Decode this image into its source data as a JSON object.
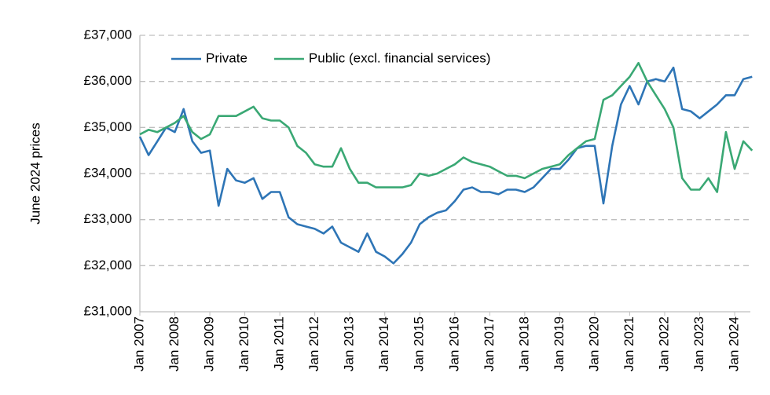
{
  "chart_data": {
    "type": "line",
    "y_label": "June  2024 prices",
    "categories": [
      "Jan 2007",
      null,
      null,
      null,
      "Jan 2008",
      null,
      null,
      null,
      "Jan 2009",
      null,
      null,
      null,
      "Jan 2010",
      null,
      null,
      null,
      "Jan 2011",
      null,
      null,
      null,
      "Jan 2012",
      null,
      null,
      null,
      "Jan 2013",
      null,
      null,
      null,
      "Jan 2014",
      null,
      null,
      null,
      "Jan 2015",
      null,
      null,
      null,
      "Jan 2016",
      null,
      null,
      null,
      "Jan 2017",
      null,
      null,
      null,
      "Jan 2018",
      null,
      null,
      null,
      "Jan 2019",
      null,
      null,
      null,
      "Jan 2020",
      null,
      null,
      null,
      "Jan 2021",
      null,
      null,
      null,
      "Jan 2022",
      null,
      null,
      null,
      "Jan 2023",
      null,
      null,
      null,
      "Jan 2024",
      null,
      null
    ],
    "series": [
      {
        "name": "Private",
        "color": "#2e75b6",
        "values": [
          34800,
          34400,
          34700,
          35000,
          34900,
          35400,
          34700,
          34450,
          34500,
          33300,
          34100,
          33850,
          33800,
          33900,
          33450,
          33600,
          33600,
          33050,
          32900,
          32850,
          32800,
          32700,
          32850,
          32500,
          32400,
          32300,
          32700,
          32300,
          32200,
          32050,
          32250,
          32500,
          32900,
          33050,
          33150,
          33200,
          33400,
          33650,
          33700,
          33600,
          33600,
          33550,
          33650,
          33650,
          33600,
          33700,
          33900,
          34100,
          34100,
          34300,
          34550,
          34600,
          34600,
          33350,
          34600,
          35500,
          35900,
          35500,
          36000,
          36050,
          36000,
          36300,
          35400,
          35350,
          35200,
          35350,
          35500,
          35700,
          35700,
          36050,
          36100
        ]
      },
      {
        "name": "Public (excl. financial services)",
        "color": "#3aa874",
        "values": [
          34850,
          34950,
          34900,
          35000,
          35100,
          35250,
          34900,
          34750,
          34850,
          35250,
          35250,
          35250,
          35350,
          35450,
          35200,
          35150,
          35150,
          35000,
          34600,
          34450,
          34200,
          34150,
          34150,
          34550,
          34100,
          33800,
          33800,
          33700,
          33700,
          33700,
          33700,
          33750,
          34000,
          33950,
          34000,
          34100,
          34200,
          34350,
          34250,
          34200,
          34150,
          34050,
          33950,
          33950,
          33900,
          34000,
          34100,
          34150,
          34200,
          34400,
          34550,
          34700,
          34750,
          35600,
          35700,
          35900,
          36100,
          36400,
          36000,
          35700,
          35400,
          35000,
          33900,
          33650,
          33650,
          33900,
          33600,
          34900,
          34100,
          34700,
          34500
        ]
      }
    ],
    "ylim": [
      31000,
      37000
    ],
    "yticks": [
      {
        "value": 31000,
        "label": "£31,000"
      },
      {
        "value": 32000,
        "label": "£32,000"
      },
      {
        "value": 33000,
        "label": "£33,000"
      },
      {
        "value": 34000,
        "label": "£34,000"
      },
      {
        "value": 35000,
        "label": "£35,000"
      },
      {
        "value": 36000,
        "label": "£36,000"
      },
      {
        "value": 37000,
        "label": "£37,000"
      }
    ],
    "grid": true,
    "legend": "top-left"
  }
}
